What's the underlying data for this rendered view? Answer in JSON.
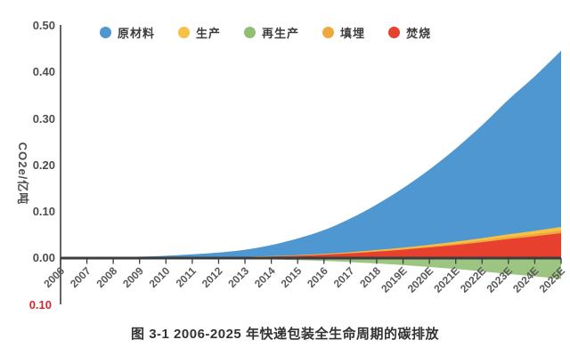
{
  "figure": {
    "caption": "图 3-1 2006-2025 年快递包装全生命周期的碳排放"
  },
  "chart_data": {
    "type": "area",
    "stacked": true,
    "title": "",
    "xlabel": "",
    "ylabel": "CO2e/亿吨",
    "ylim": [
      -0.1,
      0.5
    ],
    "y_axis_ticks": [
      "0.50",
      "0.40",
      "0.30",
      "0.20",
      "0.10",
      "0.00"
    ],
    "y_axis_negative_tick": "0.10",
    "negative_tick_color": "#d7262c",
    "grid": false,
    "legend_position": "top",
    "categories": [
      "2006",
      "2007",
      "2008",
      "2009",
      "2010",
      "2011",
      "2012",
      "2013",
      "2014",
      "2015",
      "2016",
      "2017",
      "2018",
      "2019E",
      "2020E",
      "2021E",
      "2022E",
      "2023E",
      "2024E",
      "2025E"
    ],
    "series": [
      {
        "name": "原材料",
        "color": "#4f97d0",
        "values": [
          0.0009,
          0.0013,
          0.0017,
          0.0026,
          0.0043,
          0.0068,
          0.0102,
          0.0153,
          0.0238,
          0.0357,
          0.051,
          0.0722,
          0.0977,
          0.1275,
          0.1614,
          0.1996,
          0.2421,
          0.2888,
          0.3313,
          0.3779
        ]
      },
      {
        "name": "生产",
        "color": "#f6c244",
        "values": [
          2e-05,
          3e-05,
          4e-05,
          5e-05,
          0.0001,
          0.0001,
          0.0002,
          0.0003,
          0.0005,
          0.0008,
          0.0011,
          0.0015,
          0.0021,
          0.0027,
          0.0034,
          0.0042,
          0.0051,
          0.0061,
          0.007,
          0.008
        ]
      },
      {
        "name": "再生产",
        "color": "#90bf72",
        "values": [
          -0.0001,
          -0.00015,
          -0.0002,
          -0.0003,
          -0.0005,
          -0.0008,
          -0.0012,
          -0.0018,
          -0.0028,
          -0.0042,
          -0.006,
          -0.0085,
          -0.0115,
          -0.015,
          -0.019,
          -0.0235,
          -0.0285,
          -0.034,
          -0.039,
          -0.0445
        ]
      },
      {
        "name": "填埋",
        "color": "#f0a73e",
        "values": [
          1e-05,
          2e-05,
          2e-05,
          4e-05,
          6e-05,
          0.0001,
          0.0001,
          0.0002,
          0.0003,
          0.0005,
          0.0007,
          0.001,
          0.0014,
          0.0018,
          0.0023,
          0.0028,
          0.0034,
          0.0041,
          0.0047,
          0.0053
        ]
      },
      {
        "name": "焚烧",
        "color": "#e8402e",
        "values": [
          0.00012,
          0.00018,
          0.00024,
          0.00036,
          0.0006,
          0.001,
          0.0014,
          0.0022,
          0.0034,
          0.005,
          0.0072,
          0.0102,
          0.0138,
          0.018,
          0.0228,
          0.0282,
          0.0342,
          0.0408,
          0.0468,
          0.0534
        ]
      }
    ],
    "totals": [
      0.001,
      0.0015,
      0.002,
      0.003,
      0.005,
      0.008,
      0.012,
      0.018,
      0.028,
      0.042,
      0.06,
      0.085,
      0.115,
      0.15,
      0.19,
      0.235,
      0.285,
      0.34,
      0.39,
      0.445
    ]
  }
}
